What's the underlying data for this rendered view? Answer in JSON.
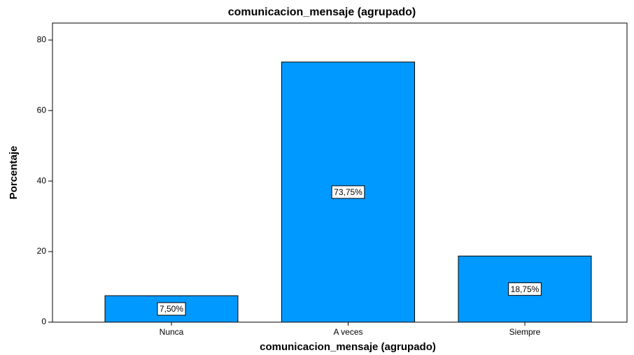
{
  "chart_data": {
    "type": "bar",
    "title": "comunicacion_mensaje (agrupado)",
    "x_label": "comunicacion_mensaje (agrupado)",
    "y_label": "Porcentaje",
    "categories": [
      "Nunca",
      "A veces",
      "Siempre"
    ],
    "values": [
      7.5,
      73.75,
      18.75
    ],
    "value_labels": [
      "7,50%",
      "73,75%",
      "18,75%"
    ],
    "color": "#0099ff",
    "ylim": [
      0,
      84.8
    ],
    "yticks": [
      0,
      20,
      40,
      60,
      80
    ],
    "grid": false
  }
}
